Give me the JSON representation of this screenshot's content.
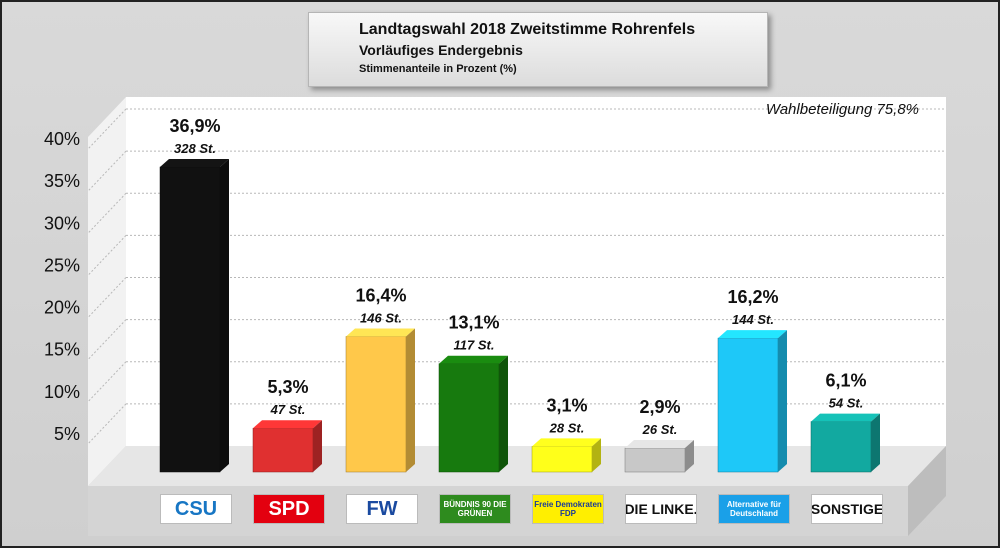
{
  "title": "Landtagswahl 2018 Zweitstimme Rohrenfels",
  "subtitle": "Vorläufiges Endergebnis",
  "subtitle2": "Stimmenanteile in Prozent (%)",
  "annotation": "Wahlbeteiligung 75,8%",
  "chart_data": {
    "type": "bar",
    "title": "Landtagswahl 2018 Zweitstimme Rohrenfels",
    "xlabel": "",
    "ylabel": "",
    "ylim": [
      0,
      40
    ],
    "yticks": [
      5,
      10,
      15,
      20,
      25,
      30,
      35,
      40
    ],
    "ytick_labels": [
      "5%",
      "10%",
      "15%",
      "20%",
      "25%",
      "30%",
      "35%",
      "40%"
    ],
    "grid": true,
    "legend": "none",
    "categories": [
      "CSU",
      "SPD",
      "FW",
      "BÜNDNIS 90 DIE GRÜNEN",
      "Freie Demokraten FDP",
      "DIE LINKE.",
      "Alternative für Deutschland",
      "SONSTIGE"
    ],
    "values": [
      36.9,
      5.3,
      16.4,
      13.1,
      3.1,
      2.9,
      16.2,
      6.1
    ],
    "value_labels": [
      "36,9%",
      "5,3%",
      "16,4%",
      "13,1%",
      "3,1%",
      "2,9%",
      "16,2%",
      "6,1%"
    ],
    "votes": [
      "328 St.",
      "47 St.",
      "146 St.",
      "117 St.",
      "28 St.",
      "26 St.",
      "144 St.",
      "54 St."
    ],
    "colors": [
      "#111111",
      "#e03030",
      "#ffc84a",
      "#177a0e",
      "#ffff1a",
      "#c8c8c8",
      "#1ec8f8",
      "#12a9a0"
    ]
  },
  "logos": [
    {
      "text": "CSU",
      "color": "#1776c4",
      "bg": "#ffffff"
    },
    {
      "text": "SPD",
      "color": "#ffffff",
      "bg": "#e3000f"
    },
    {
      "text": "FW",
      "color": "#1a4aa0",
      "bg": "#ffffff"
    },
    {
      "text": "BÜNDNIS 90 DIE GRÜNEN",
      "color": "#ffffff",
      "bg": "#2e8b1e"
    },
    {
      "text": "Freie Demokraten FDP",
      "color": "#1a3a9a",
      "bg": "#ffef00"
    },
    {
      "text": "DIE LINKE.",
      "color": "#111111",
      "bg": "#ffffff"
    },
    {
      "text": "Alternative für Deutschland",
      "color": "#ffffff",
      "bg": "#1aa0e8"
    },
    {
      "text": "SONSTIGE",
      "color": "#111111",
      "bg": "#ffffff"
    }
  ]
}
